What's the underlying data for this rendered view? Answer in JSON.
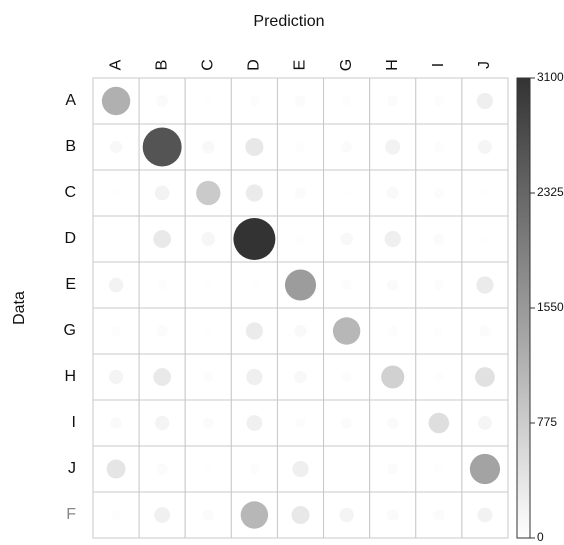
{
  "chart_data": {
    "type": "bubble_matrix",
    "x_label": "Prediction",
    "y_label": "Data",
    "columns": [
      "A",
      "B",
      "C",
      "D",
      "E",
      "G",
      "H",
      "I",
      "J"
    ],
    "rows": [
      "A",
      "B",
      "C",
      "D",
      "E",
      "G",
      "H",
      "I",
      "J",
      "F"
    ],
    "muted_rows": [
      "F"
    ],
    "muted_color": "#888888",
    "values": [
      [
        1200,
        80,
        20,
        40,
        60,
        30,
        60,
        50,
        250
      ],
      [
        100,
        2600,
        100,
        350,
        30,
        60,
        200,
        50,
        150
      ],
      [
        20,
        180,
        800,
        300,
        60,
        10,
        90,
        40,
        20
      ],
      [
        0,
        330,
        140,
        3100,
        30,
        110,
        250,
        60,
        20
      ],
      [
        180,
        30,
        10,
        20,
        1500,
        40,
        70,
        40,
        300
      ],
      [
        30,
        60,
        20,
        300,
        90,
        1100,
        40,
        30,
        60
      ],
      [
        160,
        330,
        50,
        250,
        100,
        40,
        700,
        30,
        450
      ],
      [
        70,
        170,
        60,
        230,
        40,
        60,
        70,
        500,
        150
      ],
      [
        400,
        60,
        20,
        40,
        250,
        10,
        60,
        30,
        1400
      ],
      [
        30,
        230,
        60,
        1100,
        350,
        170,
        80,
        60,
        190
      ]
    ],
    "clim": [
      0,
      3100
    ],
    "cticks": [
      0,
      775,
      1550,
      2325,
      3100
    ],
    "colors": [
      "#ffffff",
      "#333333"
    ]
  }
}
